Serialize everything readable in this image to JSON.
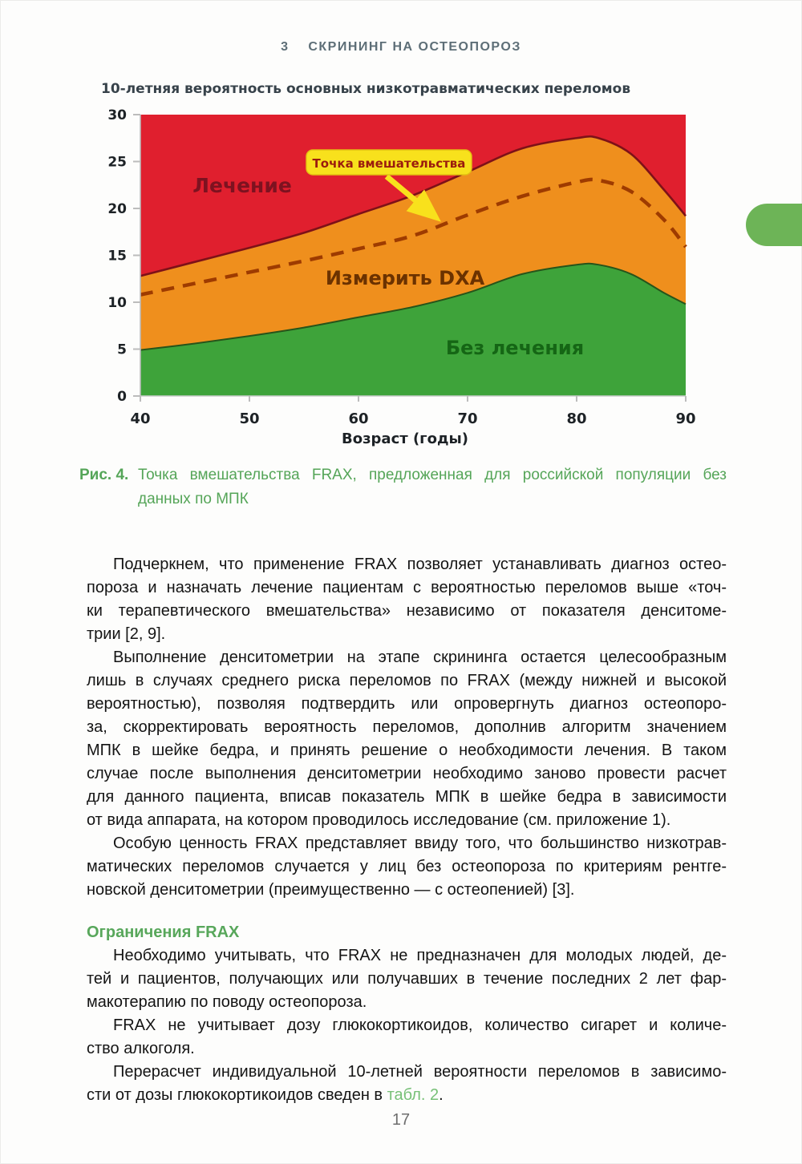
{
  "page": {
    "header": "3    СКРИНИНГ НА ОСТЕОПОРОЗ",
    "page_number": "17"
  },
  "chart_data": {
    "type": "area",
    "title": "10-летняя вероятность основных низкотравматических переломов",
    "xlabel": "Возраст (годы)",
    "ylabel": "",
    "xlim": [
      40,
      90
    ],
    "ylim": [
      0,
      30
    ],
    "x_ticks": [
      40,
      50,
      60,
      70,
      80,
      90
    ],
    "y_ticks": [
      0,
      5,
      10,
      15,
      20,
      25,
      30
    ],
    "grid": false,
    "legend": "none",
    "x": [
      40,
      45,
      50,
      55,
      60,
      65,
      70,
      75,
      80,
      82,
      85,
      88,
      90
    ],
    "series": [
      {
        "name": "Граница Лечение / Измерить DXA",
        "values": [
          12.8,
          14.3,
          15.8,
          17.4,
          19.4,
          21.4,
          23.9,
          26.4,
          27.5,
          27.5,
          25.8,
          22.0,
          19.2
        ]
      },
      {
        "name": "Точка вмешательства (пунктир)",
        "values": [
          10.8,
          12.0,
          13.2,
          14.4,
          15.7,
          17.1,
          19.3,
          21.3,
          22.8,
          23.0,
          21.8,
          18.8,
          15.9
        ]
      },
      {
        "name": "Граница Измерить DXA / Без лечения",
        "values": [
          4.9,
          5.6,
          6.4,
          7.3,
          8.4,
          9.5,
          11.0,
          13.0,
          14.0,
          14.0,
          13.0,
          11.0,
          9.8
        ]
      }
    ],
    "regions": [
      {
        "label": "Лечение",
        "color": "#e01f2e",
        "label_color": "#7d1220"
      },
      {
        "label": "Измерить DXA",
        "color": "#ef8f1d",
        "label_color": "#6b3200"
      },
      {
        "label": "Без лечения",
        "color": "#3ea33a",
        "label_color": "#156615"
      }
    ],
    "annotation": {
      "text": "Точка вмешательства",
      "bg": "#f8e11c",
      "border": "#e3c112",
      "text_color": "#9b1c0e"
    },
    "line_colors": {
      "treatment_boundary": "#7e1118",
      "no_treatment_boundary": "#27541a",
      "dashed_threshold": "#9e3b00"
    }
  },
  "caption": {
    "label": "Рис. 4.",
    "line1": "Точка вмешательства FRAX, предложенная для российской популяции без",
    "line2": "данных по МПК"
  },
  "body": {
    "blocks": [
      {
        "type": "p",
        "lines": [
          "Подчеркнем, что применение FRAX позволяет устанавливать диагноз остео-",
          "пороза и назначать лечение пациентам с вероятностью переломов выше «точ-",
          "ки терапевтического вмешательства» независимо от показателя денситоме-",
          "трии [2, 9]."
        ]
      },
      {
        "type": "p",
        "lines": [
          "Выполнение денситометрии на этапе скрининга остается целесообразным",
          "лишь в случаях среднего риска переломов по FRAX (между нижней и высокой",
          "вероятностью), позволяя подтвердить или опровергнуть диагноз остеопоро-",
          "за, скорректировать вероятность переломов, дополнив алгоритм значением",
          "МПК в шейке бедра, и принять решение о необходимости лечения. В таком",
          "случае после выполнения денситометрии необходимо заново провести расчет",
          "для данного пациента, вписав показатель МПК в шейке бедра в зависимости",
          "от вида аппарата, на котором проводилось исследование (см. приложение 1)."
        ]
      },
      {
        "type": "p",
        "lines": [
          "Особую ценность FRAX представляет ввиду того, что большинство низкотрав-",
          "матических переломов случается у лиц без остеопороза по критериям рентге-",
          "новской денситометрии (преимущественно — с остеопенией) [3]."
        ]
      },
      {
        "type": "h",
        "text": "Ограничения FRAX"
      },
      {
        "type": "p",
        "lines": [
          "Необходимо учитывать, что FRAX не предназначен для молодых людей, де-",
          "тей и пациентов, получающих или получавших в течение последних 2 лет фар-",
          "макотерапию по поводу остеопороза."
        ]
      },
      {
        "type": "p",
        "lines": [
          "FRAX не учитывает дозу глюкокортикоидов, количество сигарет и количе-",
          "ство алкоголя."
        ]
      },
      {
        "type": "p",
        "lines": [
          "Перерасчет индивидуальной 10-летней вероятности переломов в зависимо-",
          "сти от дозы глюкокортикоидов сведен в [[табл. 2]]."
        ]
      }
    ]
  }
}
